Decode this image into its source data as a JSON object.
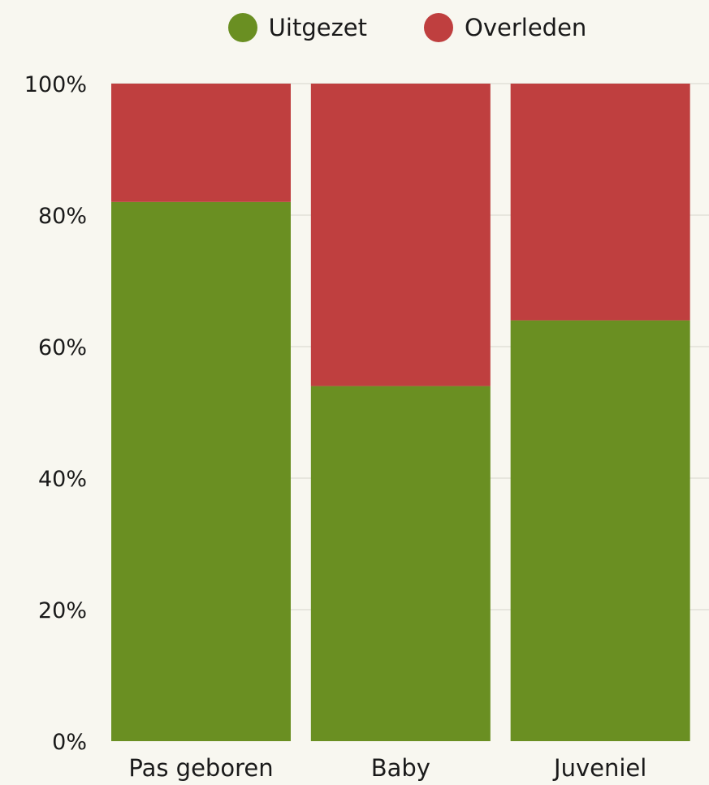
{
  "chart_data": {
    "type": "bar",
    "stacked": true,
    "normalized": true,
    "categories": [
      "Pas geboren",
      "Baby",
      "Juveniel"
    ],
    "series": [
      {
        "name": "Uitgezet",
        "values": [
          82,
          54,
          64
        ],
        "color": "#6a8f22"
      },
      {
        "name": "Overleden",
        "values": [
          18,
          46,
          36
        ],
        "color": "#bf3f3f"
      }
    ],
    "ylim": [
      0,
      100
    ],
    "yticks": [
      "0%",
      "20%",
      "40%",
      "60%",
      "80%",
      "100%"
    ],
    "grid": true,
    "legend": "top"
  }
}
